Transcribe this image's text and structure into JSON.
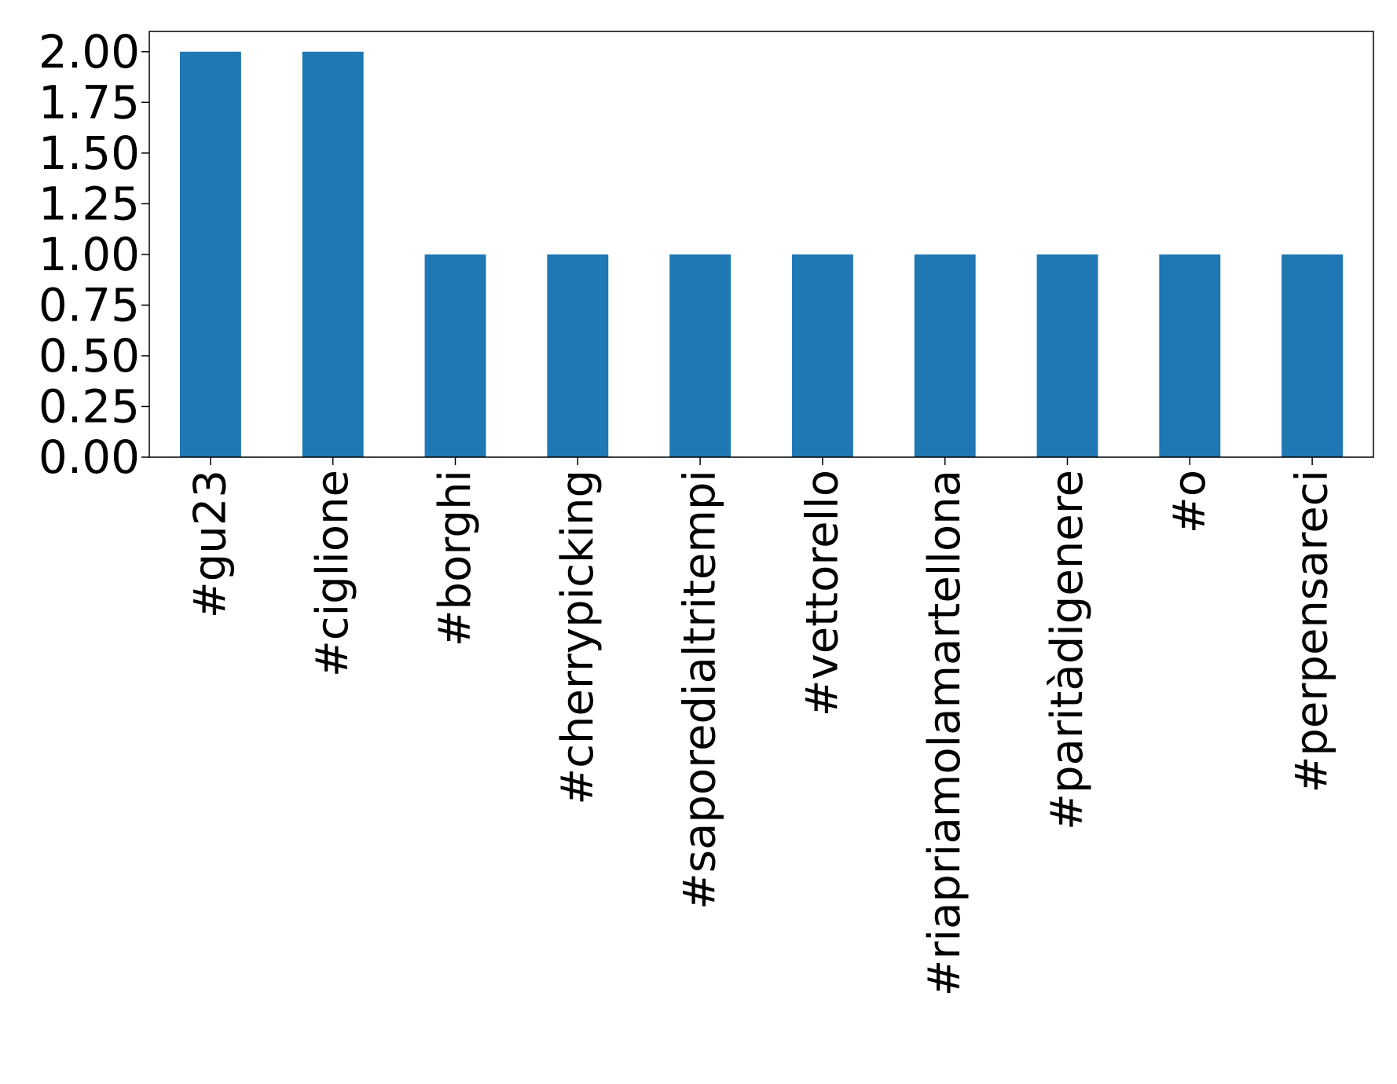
{
  "chart_data": {
    "type": "bar",
    "categories": [
      "#gu23",
      "#ciglione",
      "#borghi",
      "#cherrypicking",
      "#saporedialtritempi",
      "#vettorello",
      "#riapriamolamartellona",
      "#paritàdigenere",
      "#o",
      "#perpensareci"
    ],
    "values": [
      2,
      2,
      1,
      1,
      1,
      1,
      1,
      1,
      1,
      1
    ],
    "yticks": [
      "0.00",
      "0.25",
      "0.50",
      "0.75",
      "1.00",
      "1.25",
      "1.50",
      "1.75",
      "2.00"
    ],
    "ylim": [
      0,
      2.1
    ],
    "title": "",
    "xlabel": "",
    "ylabel": "",
    "grid": false,
    "legend": "none",
    "bar_color": "#1f77b4"
  }
}
